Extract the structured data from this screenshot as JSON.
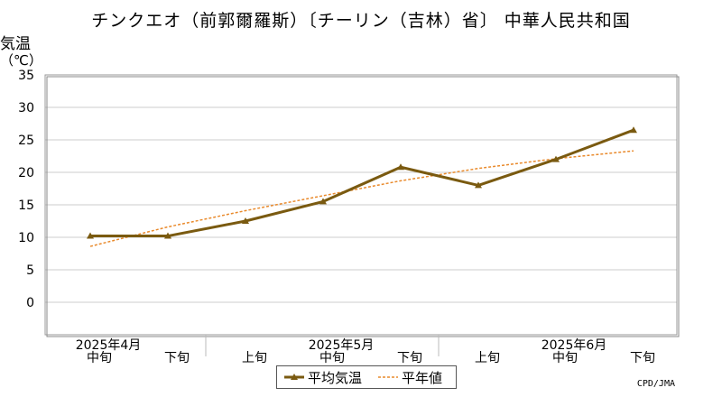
{
  "title": "チンクエオ（前郭爾羅斯）〔チーリン（吉林）省〕 中華人民共和国",
  "ylabel": "気温",
  "yunit": "（℃）",
  "credit": "CPD/JMA",
  "legend": {
    "avg": "平均気温",
    "normal": "平年値"
  },
  "colors": {
    "avg": "#7a5a10",
    "normal": "#e98a2c",
    "grid": "#cccccc"
  },
  "chart_data": {
    "type": "line",
    "ylim": [
      -5,
      35
    ],
    "yticks": [
      0,
      5,
      10,
      15,
      20,
      25,
      30,
      35
    ],
    "grid": true,
    "legend_position": "bottom-center",
    "categories": [
      "中旬",
      "下旬",
      "上旬",
      "中旬",
      "下旬",
      "上旬",
      "中旬",
      "下旬"
    ],
    "month_labels": [
      {
        "label": "2025年4月",
        "index": 0
      },
      {
        "label": "2025年5月",
        "index": 3
      },
      {
        "label": "2025年6月",
        "index": 6
      }
    ],
    "series": [
      {
        "name": "平均気温",
        "values": [
          10.2,
          10.2,
          12.5,
          15.5,
          20.8,
          18.0,
          22.0,
          26.5
        ]
      },
      {
        "name": "平年値",
        "values": [
          8.6,
          11.6,
          14.1,
          16.4,
          18.7,
          20.6,
          22.1,
          23.3
        ]
      }
    ]
  }
}
